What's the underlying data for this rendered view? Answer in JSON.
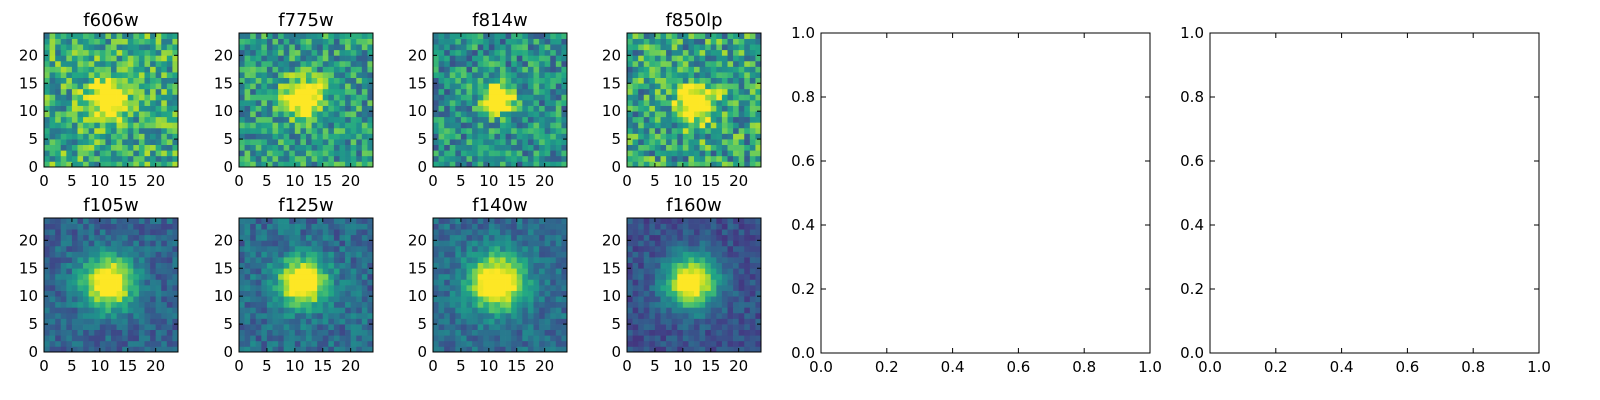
{
  "chart_data": [
    {
      "type": "heatmap",
      "title": "f606w",
      "colormap": "viridis",
      "shape": [
        24,
        24
      ],
      "xlim": [
        0,
        24
      ],
      "ylim": [
        0,
        24
      ],
      "xticks": [
        0,
        5,
        10,
        15,
        20
      ],
      "yticks": [
        0,
        5,
        10,
        15,
        20
      ],
      "center": [
        11,
        12
      ],
      "peak_width": 2.2,
      "background": 0.62,
      "noise": 0.28
    },
    {
      "type": "heatmap",
      "title": "f775w",
      "colormap": "viridis",
      "shape": [
        24,
        24
      ],
      "xlim": [
        0,
        24
      ],
      "ylim": [
        0,
        24
      ],
      "xticks": [
        0,
        5,
        10,
        15,
        20
      ],
      "yticks": [
        0,
        5,
        10,
        15,
        20
      ],
      "center": [
        11,
        12
      ],
      "peak_width": 2.2,
      "background": 0.55,
      "noise": 0.25
    },
    {
      "type": "heatmap",
      "title": "f814w",
      "colormap": "viridis",
      "shape": [
        24,
        24
      ],
      "xlim": [
        0,
        24
      ],
      "ylim": [
        0,
        24
      ],
      "xticks": [
        0,
        5,
        10,
        15,
        20
      ],
      "yticks": [
        0,
        5,
        10,
        15,
        20
      ],
      "center": [
        11,
        12
      ],
      "peak_width": 2.0,
      "background": 0.5,
      "noise": 0.25
    },
    {
      "type": "heatmap",
      "title": "f850lp",
      "colormap": "viridis",
      "shape": [
        24,
        24
      ],
      "xlim": [
        0,
        24
      ],
      "ylim": [
        0,
        24
      ],
      "xticks": [
        0,
        5,
        10,
        15,
        20
      ],
      "yticks": [
        0,
        5,
        10,
        15,
        20
      ],
      "center": [
        12,
        11
      ],
      "peak_width": 2.2,
      "background": 0.58,
      "noise": 0.3
    },
    {
      "type": "heatmap",
      "title": "f105w",
      "colormap": "viridis",
      "shape": [
        24,
        24
      ],
      "xlim": [
        0,
        24
      ],
      "ylim": [
        0,
        24
      ],
      "xticks": [
        0,
        5,
        10,
        15,
        20
      ],
      "yticks": [
        0,
        5,
        10,
        15,
        20
      ],
      "center": [
        11,
        12
      ],
      "peak_width": 3.2,
      "background": 0.32,
      "noise": 0.12
    },
    {
      "type": "heatmap",
      "title": "f125w",
      "colormap": "viridis",
      "shape": [
        24,
        24
      ],
      "xlim": [
        0,
        24
      ],
      "ylim": [
        0,
        24
      ],
      "xticks": [
        0,
        5,
        10,
        15,
        20
      ],
      "yticks": [
        0,
        5,
        10,
        15,
        20
      ],
      "center": [
        11,
        12
      ],
      "peak_width": 3.0,
      "background": 0.35,
      "noise": 0.14
    },
    {
      "type": "heatmap",
      "title": "f140w",
      "colormap": "viridis",
      "shape": [
        24,
        24
      ],
      "xlim": [
        0,
        24
      ],
      "ylim": [
        0,
        24
      ],
      "xticks": [
        0,
        5,
        10,
        15,
        20
      ],
      "yticks": [
        0,
        5,
        10,
        15,
        20
      ],
      "center": [
        11,
        12
      ],
      "peak_width": 3.4,
      "background": 0.35,
      "noise": 0.12
    },
    {
      "type": "heatmap",
      "title": "f160w",
      "colormap": "viridis",
      "shape": [
        24,
        24
      ],
      "xlim": [
        0,
        24
      ],
      "ylim": [
        0,
        24
      ],
      "xticks": [
        0,
        5,
        10,
        15,
        20
      ],
      "yticks": [
        0,
        5,
        10,
        15,
        20
      ],
      "center": [
        11,
        12
      ],
      "peak_width": 3.2,
      "background": 0.25,
      "noise": 0.1
    },
    {
      "type": "scatter",
      "title": "",
      "xlabel": "",
      "ylabel": "",
      "xlim": [
        0.0,
        1.0
      ],
      "ylim": [
        0.0,
        1.0
      ],
      "xticks": [
        "0.0",
        "0.2",
        "0.4",
        "0.6",
        "0.8",
        "1.0"
      ],
      "yticks": [
        "0.0",
        "0.2",
        "0.4",
        "0.6",
        "0.8",
        "1.0"
      ],
      "x": [],
      "y": []
    },
    {
      "type": "scatter",
      "title": "",
      "xlabel": "",
      "ylabel": "",
      "xlim": [
        0.0,
        1.0
      ],
      "ylim": [
        0.0,
        1.0
      ],
      "xticks": [
        "0.0",
        "0.2",
        "0.4",
        "0.6",
        "0.8",
        "1.0"
      ],
      "yticks": [
        "0.0",
        "0.2",
        "0.4",
        "0.6",
        "0.8",
        "1.0"
      ],
      "x": [],
      "y": []
    }
  ]
}
